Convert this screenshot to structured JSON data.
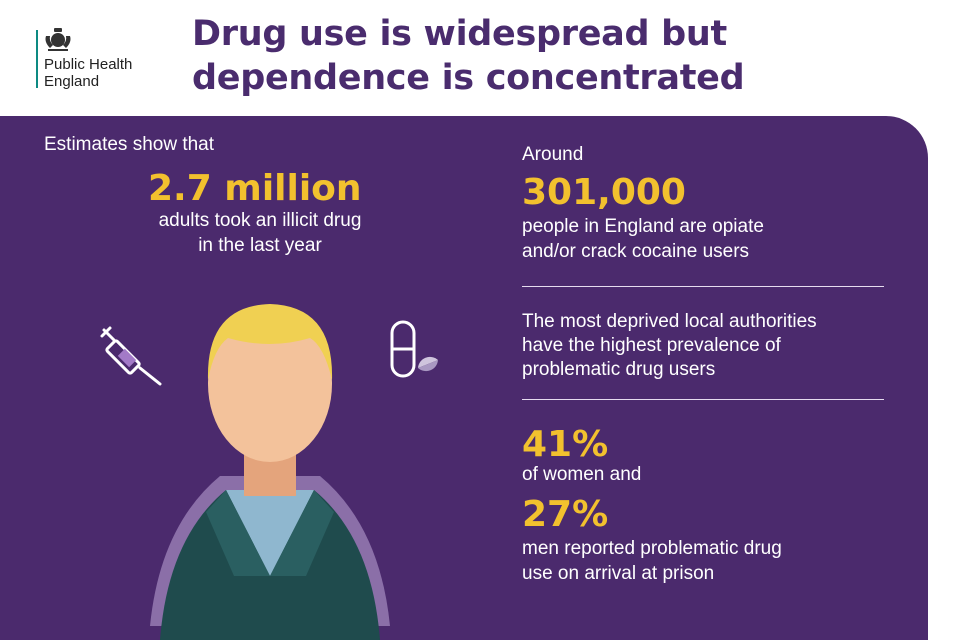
{
  "header": {
    "org_line1": "Public Health",
    "org_line2": "England",
    "title_line1": "Drug use is widespread but",
    "title_line2": "dependence is concentrated"
  },
  "left": {
    "intro": "Estimates show that",
    "stat": "2.7 million",
    "desc_line1": "adults took an illicit drug",
    "desc_line2": "in the last year"
  },
  "right": {
    "around": "Around",
    "stat_301": "301,000",
    "desc_301_line1": "people in England are opiate",
    "desc_301_line2": "and/or crack cocaine users",
    "deprived_line1": "The most deprived local authorities",
    "deprived_line2": "have the highest prevalence of",
    "deprived_line3": "problematic drug users",
    "stat_41": "41%",
    "desc_41": "of women and",
    "stat_27": "27%",
    "desc_27_line1": "men reported problematic drug",
    "desc_27_line2": "use on arrival at prison"
  },
  "colors": {
    "purple": "#4b2a6d",
    "headline": "#4a2c6e",
    "highlight": "#f2c12e"
  },
  "icons": [
    "crest-icon",
    "syringe-icon",
    "pill-icon",
    "person-illustration"
  ]
}
